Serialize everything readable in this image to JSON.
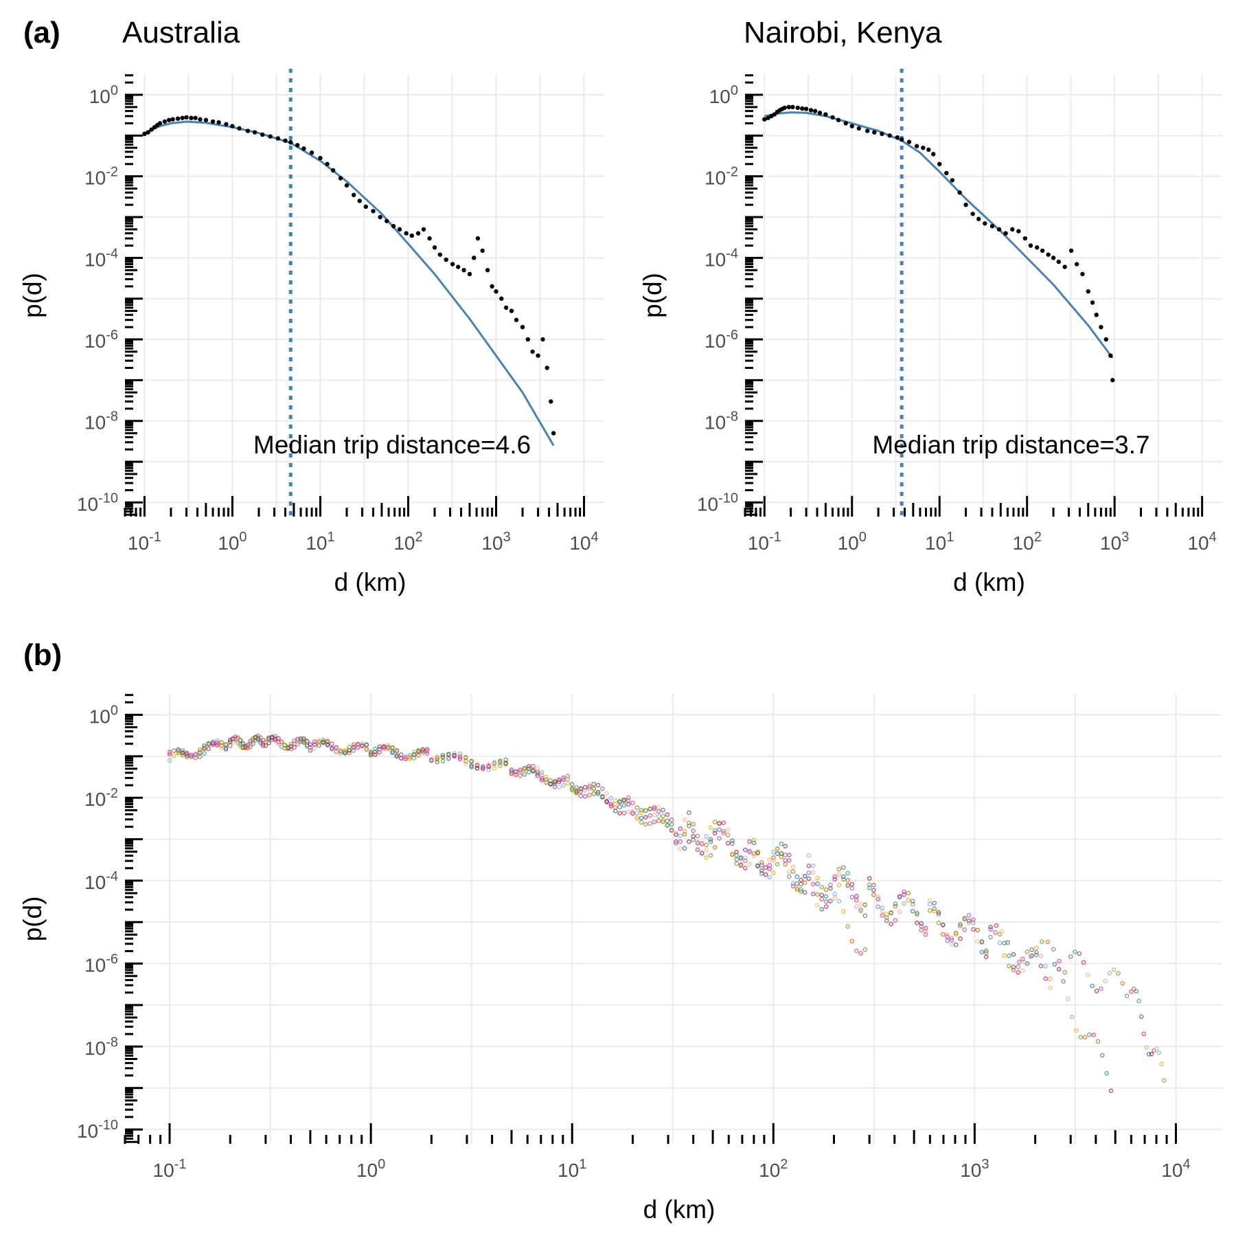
{
  "panel_tags": [
    "(a)",
    "(b)"
  ],
  "chart_data": [
    {
      "type": "scatter",
      "title": "Australia",
      "xlabel": "d (km)",
      "ylabel": "p(d)",
      "xscale": "log",
      "yscale": "log",
      "xlim": [
        0.06,
        17000
      ],
      "ylim": [
        4.5e-11,
        3.2
      ],
      "xticks": [
        "10^-1",
        "10^0",
        "10^1",
        "10^2",
        "10^3",
        "10^4"
      ],
      "yticks": [
        "10^0",
        "10^-2",
        "10^-4",
        "10^-6",
        "10^-8",
        "10^-10"
      ],
      "grid": true,
      "annotation": "Median trip distance=4.6",
      "median": 4.6,
      "fit_color": "#4682b4",
      "point_color": "#000000",
      "fit_curve": {
        "x": [
          0.1,
          0.15,
          0.2,
          0.3,
          0.5,
          1,
          2,
          4.6,
          10,
          20,
          50,
          100,
          200,
          500,
          1000,
          2000,
          4500
        ],
        "y": [
          0.115,
          0.17,
          0.2,
          0.22,
          0.205,
          0.16,
          0.115,
          0.066,
          0.024,
          0.0075,
          0.0012,
          0.00022,
          4e-05,
          3.2e-06,
          4e-07,
          5e-08,
          2.5e-09
        ]
      },
      "points": {
        "x": [
          0.1,
          0.11,
          0.12,
          0.13,
          0.14,
          0.15,
          0.17,
          0.19,
          0.21,
          0.24,
          0.27,
          0.3,
          0.34,
          0.38,
          0.43,
          0.5,
          0.6,
          0.7,
          0.85,
          1,
          1.2,
          1.5,
          1.8,
          2.2,
          2.7,
          3.3,
          4,
          4.6,
          5.5,
          6.5,
          8,
          10,
          12,
          14,
          17,
          20,
          24,
          28,
          33,
          40,
          48,
          57,
          68,
          80,
          95,
          110,
          130,
          150,
          175,
          200,
          230,
          270,
          320,
          370,
          430,
          500,
          560,
          620,
          700,
          800,
          900,
          1000,
          1150,
          1300,
          1500,
          1700,
          2000,
          2300,
          2600,
          3000,
          3400,
          3800,
          4200,
          4500
        ],
        "y": [
          0.11,
          0.12,
          0.14,
          0.16,
          0.18,
          0.2,
          0.22,
          0.24,
          0.25,
          0.26,
          0.27,
          0.28,
          0.27,
          0.27,
          0.25,
          0.24,
          0.22,
          0.21,
          0.19,
          0.17,
          0.15,
          0.13,
          0.12,
          0.105,
          0.095,
          0.085,
          0.075,
          0.068,
          0.058,
          0.048,
          0.038,
          0.028,
          0.02,
          0.014,
          0.009,
          0.006,
          0.0035,
          0.0025,
          0.0018,
          0.0014,
          0.001,
          0.0008,
          0.0006,
          0.0005,
          0.0004,
          0.00035,
          0.0004,
          0.0005,
          0.0003,
          0.00018,
          0.00012,
          9e-05,
          7e-05,
          6e-05,
          5e-05,
          4e-05,
          0.0001,
          0.0003,
          0.00015,
          5e-05,
          2e-05,
          1.5e-05,
          1e-05,
          6e-06,
          5e-06,
          3e-06,
          2e-06,
          1e-06,
          5e-07,
          4e-07,
          1e-06,
          2e-07,
          3e-08,
          5e-09
        ]
      }
    },
    {
      "type": "scatter",
      "title": "Nairobi, Kenya",
      "xlabel": "d (km)",
      "ylabel": "p(d)",
      "xscale": "log",
      "yscale": "log",
      "xlim": [
        0.06,
        17000
      ],
      "ylim": [
        4.5e-11,
        3.2
      ],
      "xticks": [
        "10^-1",
        "10^0",
        "10^1",
        "10^2",
        "10^3",
        "10^4"
      ],
      "yticks": [
        "10^0",
        "10^-2",
        "10^-4",
        "10^-6",
        "10^-8",
        "10^-10"
      ],
      "grid": true,
      "annotation": "Median trip distance=3.7",
      "median": 3.7,
      "fit_color": "#4682b4",
      "point_color": "#000000",
      "fit_curve": {
        "x": [
          0.1,
          0.15,
          0.2,
          0.3,
          0.5,
          1,
          2,
          3.7,
          6,
          10,
          20,
          50,
          100,
          200,
          500,
          950
        ],
        "y": [
          0.3,
          0.35,
          0.37,
          0.36,
          0.3,
          0.2,
          0.13,
          0.075,
          0.038,
          0.013,
          0.0028,
          0.00045,
          0.0001,
          2.2e-05,
          2.2e-06,
          3.5e-07
        ]
      },
      "points": {
        "x": [
          0.1,
          0.11,
          0.12,
          0.13,
          0.14,
          0.15,
          0.16,
          0.17,
          0.19,
          0.21,
          0.24,
          0.27,
          0.3,
          0.34,
          0.38,
          0.43,
          0.5,
          0.6,
          0.7,
          0.85,
          1,
          1.2,
          1.5,
          1.8,
          2.2,
          2.7,
          3.3,
          3.7,
          4.5,
          5.5,
          6.5,
          7.5,
          8.5,
          10,
          12,
          14,
          17,
          20,
          24,
          28,
          33,
          40,
          48,
          57,
          68,
          80,
          95,
          110,
          130,
          150,
          175,
          200,
          230,
          270,
          320,
          370,
          430,
          500,
          560,
          620,
          700,
          800,
          900,
          950
        ],
        "y": [
          0.25,
          0.27,
          0.3,
          0.33,
          0.38,
          0.42,
          0.45,
          0.48,
          0.5,
          0.5,
          0.48,
          0.46,
          0.45,
          0.42,
          0.4,
          0.36,
          0.33,
          0.28,
          0.24,
          0.2,
          0.17,
          0.15,
          0.13,
          0.12,
          0.11,
          0.1,
          0.09,
          0.08,
          0.07,
          0.055,
          0.05,
          0.045,
          0.035,
          0.02,
          0.012,
          0.008,
          0.004,
          0.002,
          0.0012,
          0.0009,
          0.0007,
          0.0006,
          0.0005,
          0.0004,
          0.0005,
          0.00045,
          0.0003,
          0.0002,
          0.00018,
          0.00015,
          0.00012,
          0.0001,
          8e-05,
          6e-05,
          0.00015,
          7e-05,
          4e-05,
          1.5e-05,
          8e-06,
          4e-06,
          2e-06,
          1e-06,
          4e-07,
          1e-07
        ]
      }
    },
    {
      "type": "scatter",
      "title": "",
      "xlabel": "d (km)",
      "ylabel": "p(d)",
      "xscale": "log",
      "yscale": "log",
      "xlim": [
        0.06,
        17000
      ],
      "ylim": [
        4.5e-11,
        3.2
      ],
      "xticks": [
        "10^-1",
        "10^0",
        "10^1",
        "10^2",
        "10^3",
        "10^4"
      ],
      "yticks": [
        "10^0",
        "10^-2",
        "10^-4",
        "10^-6",
        "10^-8",
        "10^-10"
      ],
      "grid": true,
      "point_style": "hollow circles, many overlapping regional series",
      "series_colors": [
        "#6baed6",
        "#e6ab02",
        "#66a61e",
        "#d95f02",
        "#7570b3",
        "#e7298a",
        "#a6761d",
        "#666666",
        "#1b9e77",
        "#8c2d74",
        "#c51b7d",
        "#fdae61",
        "#2166ac",
        "#b2182b",
        "#984ea3",
        "#f4a582"
      ],
      "series": [
        {
          "x": [
            0.1,
            0.2,
            0.3,
            0.5,
            1,
            2,
            5,
            10,
            20,
            40,
            80,
            150,
            300,
            600,
            1200,
            2500
          ],
          "y": [
            0.08,
            0.2,
            0.22,
            0.18,
            0.14,
            0.1,
            0.05,
            0.018,
            0.004,
            0.001,
            0.0004,
            0.0001,
            3e-05,
            1e-05,
            3e-06,
            5e-07
          ]
        },
        {
          "x": [
            0.1,
            0.2,
            0.3,
            0.5,
            1,
            2,
            5,
            10,
            20,
            40,
            80,
            150,
            300,
            600,
            1200,
            3000,
            6000,
            9000
          ],
          "y": [
            0.1,
            0.22,
            0.24,
            0.2,
            0.15,
            0.11,
            0.06,
            0.025,
            0.008,
            0.002,
            0.0006,
            0.0002,
            5e-05,
            1.5e-05,
            4e-06,
            1e-06,
            2e-07,
            1e-09
          ]
        },
        {
          "x": [
            0.1,
            0.2,
            0.3,
            0.5,
            1,
            2,
            5,
            10,
            20,
            40,
            80,
            150,
            300,
            600,
            1200,
            2500,
            5000
          ],
          "y": [
            0.1,
            0.2,
            0.22,
            0.18,
            0.13,
            0.1,
            0.05,
            0.02,
            0.005,
            0.0012,
            0.0004,
            0.0001,
            4e-05,
            1.2e-05,
            3e-06,
            5e-07,
            1e-09
          ]
        },
        {
          "x": [
            0.1,
            0.2,
            0.3,
            0.5,
            1,
            2,
            5,
            10,
            20,
            40,
            80,
            150,
            300
          ],
          "y": [
            0.1,
            0.2,
            0.22,
            0.19,
            0.14,
            0.1,
            0.05,
            0.02,
            0.006,
            0.002,
            0.0005,
            0.0001,
            2e-06
          ]
        }
      ]
    }
  ]
}
